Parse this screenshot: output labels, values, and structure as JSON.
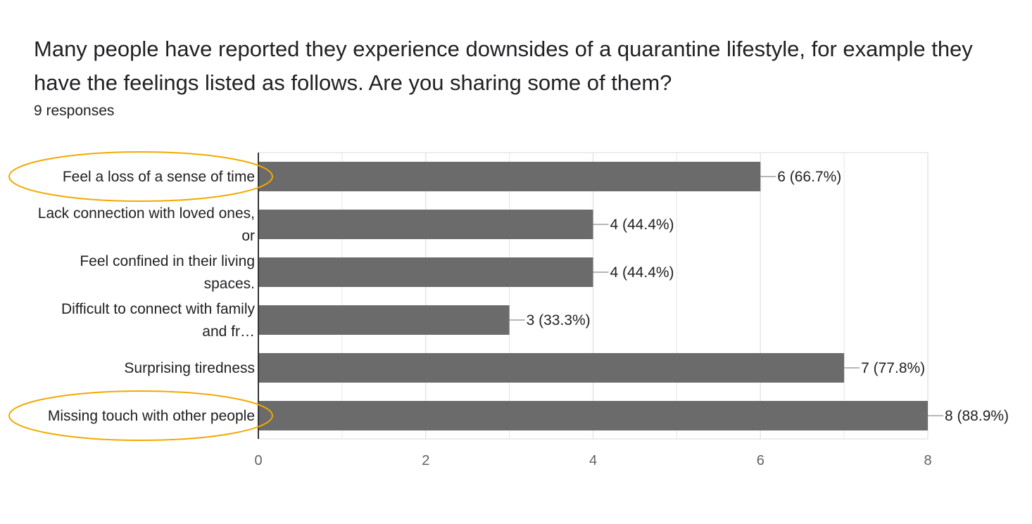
{
  "header": {
    "title": "Many people have reported they experience downsides of a quarantine lifestyle, for example they have the feelings listed as follows. Are you sharing some of them?",
    "responses": "9 responses"
  },
  "colors": {
    "bar": "#6b6b6b",
    "highlight": "#f2a900",
    "grid": "#e6e6e6",
    "axis": "#333333"
  },
  "chart_data": {
    "type": "bar",
    "orientation": "horizontal",
    "categories": [
      [
        "Feel a loss of a sense of time"
      ],
      [
        "Lack connection with loved ones,",
        "or"
      ],
      [
        "Feel confined in their living",
        "spaces."
      ],
      [
        "Difficult to connect with family",
        "and fr…"
      ],
      [
        "Surprising tiredness"
      ],
      [
        "Missing touch with other people"
      ]
    ],
    "values": [
      6,
      4,
      4,
      3,
      7,
      8
    ],
    "value_labels": [
      "6 (66.7%)",
      "4 (44.4%)",
      "4 (44.4%)",
      "3 (33.3%)",
      "7 (77.8%)",
      "8 (88.9%)"
    ],
    "highlighted": [
      0,
      5
    ],
    "xlim": [
      0,
      8
    ],
    "xticks": [
      0,
      2,
      4,
      6,
      8
    ],
    "grid": true,
    "legend": "none"
  }
}
